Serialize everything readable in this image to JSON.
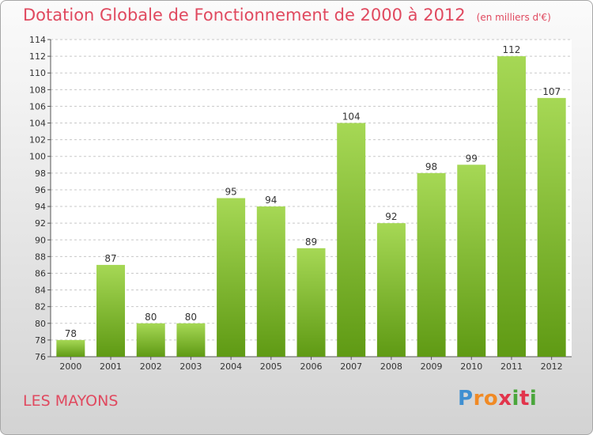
{
  "title": "Dotation Globale de Fonctionnement de 2000 à 2012",
  "unit_note": "(en milliers d'€)",
  "commune": "LES MAYONS",
  "logo": {
    "letters": [
      "P",
      "r",
      "o",
      "x",
      "i",
      "t",
      "i"
    ],
    "colors": [
      "#3f8fd1",
      "#f08a25",
      "#f08a25",
      "#e2354c",
      "#4aa63b",
      "#e2354c",
      "#4aa63b"
    ]
  },
  "colors": {
    "accent": "#e0495f",
    "bar_light": "#a6d855",
    "bar_dark": "#5f9a14"
  },
  "chart_data": {
    "type": "bar",
    "title": "Dotation Globale de Fonctionnement de 2000 à 2012",
    "subtitle": "(en milliers d'€)",
    "categories": [
      "2000",
      "2001",
      "2002",
      "2003",
      "2004",
      "2005",
      "2006",
      "2007",
      "2008",
      "2009",
      "2010",
      "2011",
      "2012"
    ],
    "values": [
      78,
      87,
      80,
      80,
      95,
      94,
      89,
      104,
      92,
      98,
      99,
      112,
      107
    ],
    "ylim": [
      76,
      114
    ],
    "yticks": [
      76,
      78,
      80,
      82,
      84,
      86,
      88,
      90,
      92,
      94,
      96,
      98,
      100,
      102,
      104,
      106,
      108,
      110,
      112,
      114
    ],
    "grid": true,
    "data_labels": true,
    "xlabel": "",
    "ylabel": ""
  }
}
